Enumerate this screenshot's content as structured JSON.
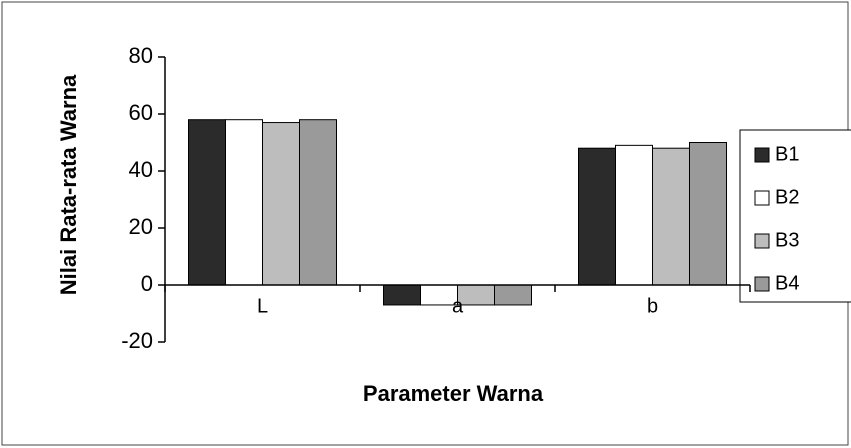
{
  "chart_data": {
    "type": "bar",
    "xlabel": "Parameter Warna",
    "ylabel": "Nilai Rata-rata Warna",
    "categories": [
      "L",
      "a",
      "b"
    ],
    "series": [
      {
        "name": "B1",
        "color": "#2b2b2b",
        "values": [
          58,
          -7,
          48
        ]
      },
      {
        "name": "B2",
        "color": "#ffffff",
        "values": [
          58,
          -7,
          49
        ]
      },
      {
        "name": "B3",
        "color": "#bdbdbd",
        "values": [
          57,
          -7,
          48
        ]
      },
      {
        "name": "B4",
        "color": "#9a9a9a",
        "values": [
          58,
          -7,
          50
        ]
      }
    ],
    "ylim": [
      -20,
      80
    ],
    "yticks": [
      -20,
      0,
      20,
      40,
      60,
      80
    ],
    "legend": "right"
  }
}
